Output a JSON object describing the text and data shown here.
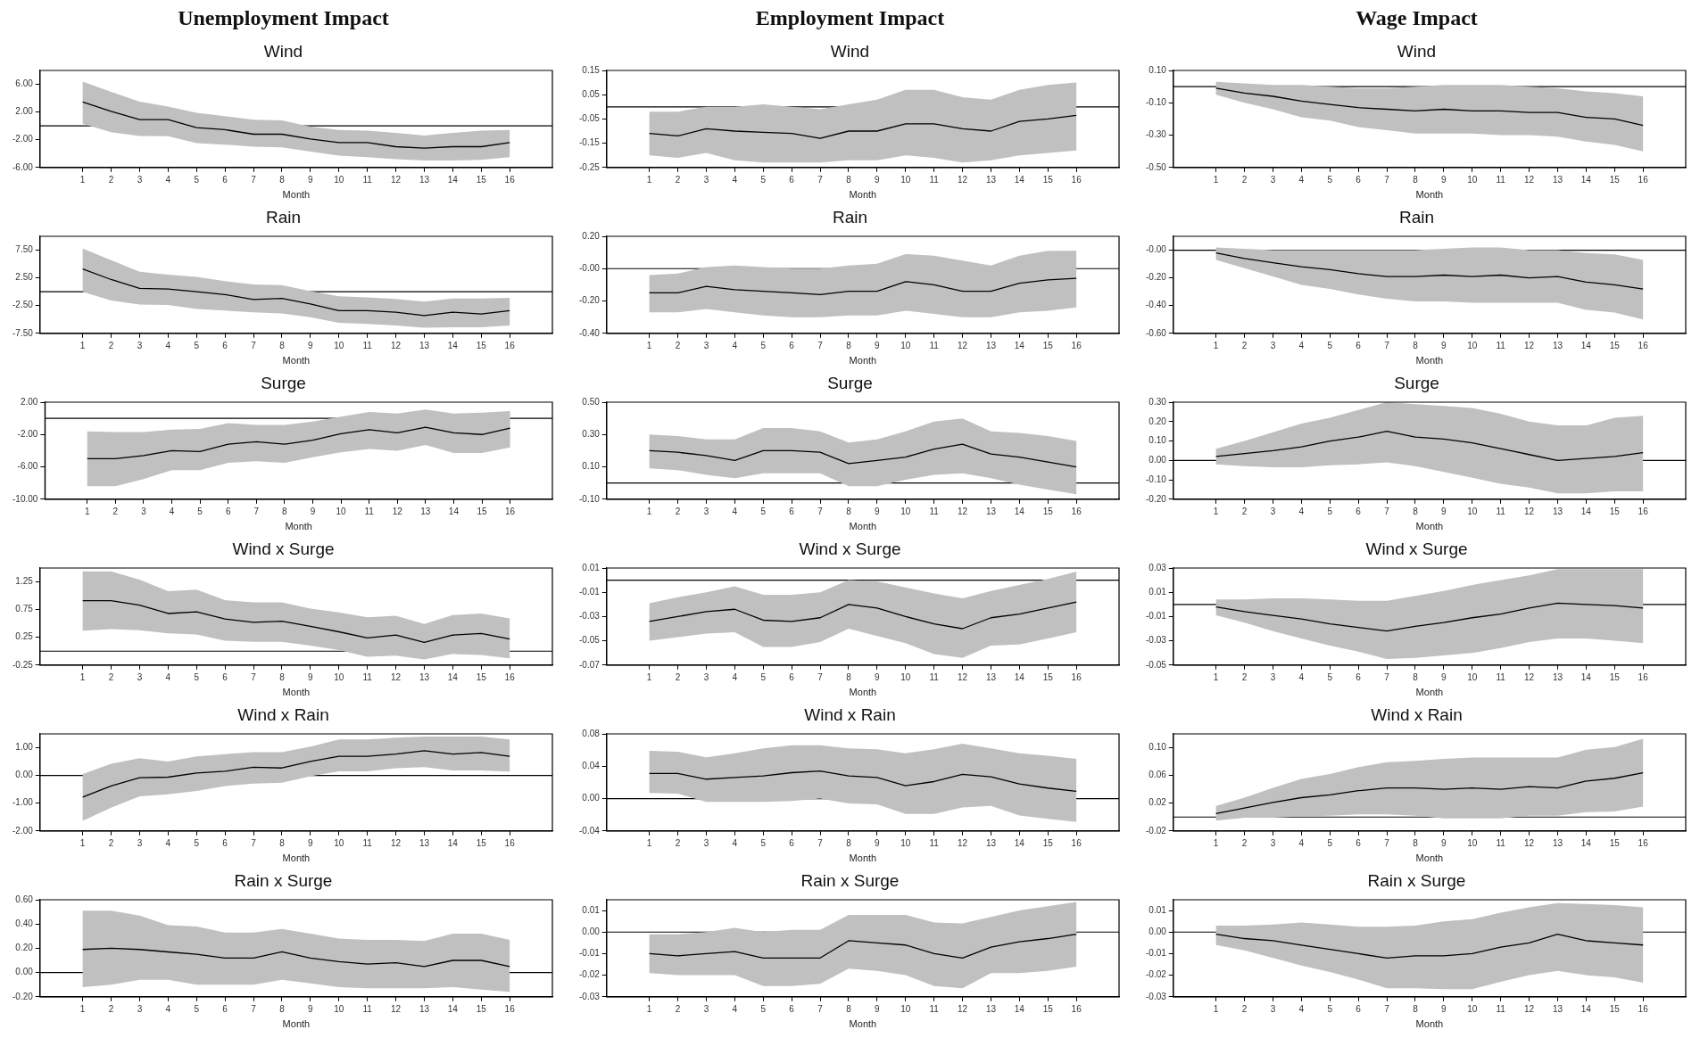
{
  "chart_data": [
    {
      "type": "line",
      "title": "Unemployment Impact",
      "subtitle": "Wind",
      "xlabel": "Month",
      "x": [
        1,
        2,
        3,
        4,
        5,
        6,
        7,
        8,
        9,
        10,
        11,
        12,
        13,
        14,
        15,
        16
      ],
      "xlim": [
        -0.5,
        17.5
      ],
      "xticks": [
        1,
        2,
        3,
        4,
        5,
        6,
        7,
        8,
        9,
        10,
        11,
        12,
        13,
        14,
        15,
        16
      ],
      "ylim": [
        -6,
        8
      ],
      "yticks": [
        {
          "value": -6,
          "label": "-6.00"
        },
        {
          "value": -2,
          "label": "-2.00"
        },
        {
          "value": 2,
          "label": "2.00"
        },
        {
          "value": 6,
          "label": "6.00"
        }
      ],
      "ref_lines": [
        {
          "axis": "y",
          "value": 0,
          "color": "#000000"
        }
      ],
      "series": [
        {
          "color": "#000000",
          "values": [
            3.45,
            2.1,
            0.9,
            0.9,
            -0.25,
            -0.55,
            -1.2,
            -1.2,
            -1.9,
            -2.4,
            -2.4,
            -3.0,
            -3.2,
            -3.0,
            -3.0,
            -2.4
          ],
          "upper": [
            6.4,
            4.9,
            3.5,
            2.8,
            1.9,
            1.4,
            0.9,
            0.8,
            -0.1,
            -0.6,
            -0.7,
            -1.0,
            -1.4,
            -1.0,
            -0.7,
            -0.6
          ],
          "lower": [
            0.3,
            -0.9,
            -1.45,
            -1.5,
            -2.5,
            -2.7,
            -3.0,
            -3.1,
            -3.7,
            -4.3,
            -4.5,
            -4.8,
            -5.0,
            -5.0,
            -4.9,
            -4.5
          ]
        }
      ]
    },
    {
      "type": "line",
      "title": "Employment Impact",
      "subtitle": "Wind",
      "xlabel": "Month",
      "x": [
        1,
        2,
        3,
        4,
        5,
        6,
        7,
        8,
        9,
        10,
        11,
        12,
        13,
        14,
        15,
        16
      ],
      "xlim": [
        -0.5,
        17.5
      ],
      "xticks": [
        1,
        2,
        3,
        4,
        5,
        6,
        7,
        8,
        9,
        10,
        11,
        12,
        13,
        14,
        15,
        16
      ],
      "ylim": [
        -0.25,
        0.15
      ],
      "yticks": [
        {
          "value": -0.25,
          "label": "-0.25"
        },
        {
          "value": -0.15,
          "label": "-0.15"
        },
        {
          "value": -0.05,
          "label": "-0.05"
        },
        {
          "value": 0.05,
          "label": "0.05"
        },
        {
          "value": 0.15,
          "label": "0.15"
        }
      ],
      "ref_lines": [
        {
          "axis": "y",
          "value": 0,
          "color": "#000000"
        }
      ],
      "series": [
        {
          "color": "#000000",
          "values": [
            -0.11,
            -0.12,
            -0.09,
            -0.1,
            -0.105,
            -0.11,
            -0.13,
            -0.1,
            -0.1,
            -0.07,
            -0.07,
            -0.09,
            -0.1,
            -0.06,
            -0.05,
            -0.035
          ],
          "upper": [
            -0.02,
            -0.02,
            0.0,
            0.0,
            0.01,
            0.0,
            -0.01,
            0.01,
            0.03,
            0.07,
            0.07,
            0.04,
            0.03,
            0.07,
            0.09,
            0.1
          ],
          "lower": [
            -0.2,
            -0.21,
            -0.19,
            -0.22,
            -0.23,
            -0.23,
            -0.23,
            -0.22,
            -0.22,
            -0.2,
            -0.21,
            -0.23,
            -0.22,
            -0.2,
            -0.19,
            -0.18
          ]
        }
      ]
    },
    {
      "type": "line",
      "title": "Wage Impact",
      "subtitle": "Wind",
      "xlabel": "Month",
      "x": [
        1,
        2,
        3,
        4,
        5,
        6,
        7,
        8,
        9,
        10,
        11,
        12,
        13,
        14,
        15,
        16
      ],
      "xlim": [
        -0.5,
        17.5
      ],
      "xticks": [
        1,
        2,
        3,
        4,
        5,
        6,
        7,
        8,
        9,
        10,
        11,
        12,
        13,
        14,
        15,
        16
      ],
      "ylim": [
        -0.5,
        0.1
      ],
      "yticks": [
        {
          "value": -0.5,
          "label": "-0.50"
        },
        {
          "value": -0.3,
          "label": "-0.30"
        },
        {
          "value": -0.1,
          "label": "-0.10"
        },
        {
          "value": 0.1,
          "label": "0.10"
        }
      ],
      "ref_lines": [
        {
          "axis": "y",
          "value": 0,
          "color": "#000000"
        }
      ],
      "series": [
        {
          "color": "#000000",
          "values": [
            -0.01,
            -0.04,
            -0.06,
            -0.09,
            -0.11,
            -0.13,
            -0.14,
            -0.15,
            -0.14,
            -0.15,
            -0.15,
            -0.16,
            -0.16,
            -0.19,
            -0.2,
            -0.24
          ],
          "upper": [
            0.03,
            0.02,
            0.01,
            0.01,
            0.0,
            -0.01,
            -0.01,
            0.0,
            0.01,
            0.01,
            0.01,
            0.0,
            -0.01,
            -0.03,
            -0.04,
            -0.06
          ],
          "lower": [
            -0.05,
            -0.1,
            -0.14,
            -0.19,
            -0.21,
            -0.25,
            -0.27,
            -0.29,
            -0.29,
            -0.29,
            -0.3,
            -0.3,
            -0.31,
            -0.34,
            -0.36,
            -0.4
          ]
        }
      ]
    },
    {
      "type": "line",
      "title": "Rain",
      "xlabel": "Month",
      "x": [
        1,
        2,
        3,
        4,
        5,
        6,
        7,
        8,
        9,
        10,
        11,
        12,
        13,
        14,
        15,
        16
      ],
      "xlim": [
        -0.5,
        17.5
      ],
      "xticks": [
        1,
        2,
        3,
        4,
        5,
        6,
        7,
        8,
        9,
        10,
        11,
        12,
        13,
        14,
        15,
        16
      ],
      "ylim": [
        -7.5,
        10
      ],
      "yticks": [
        {
          "value": -7.5,
          "label": "-7.50"
        },
        {
          "value": -2.5,
          "label": "-2.50"
        },
        {
          "value": 2.5,
          "label": "2.50"
        },
        {
          "value": 7.5,
          "label": "7.50"
        }
      ],
      "ref_lines": [
        {
          "axis": "y",
          "value": 0,
          "color": "#000000"
        }
      ],
      "series": [
        {
          "color": "#000000",
          "values": [
            4.1,
            2.2,
            0.6,
            0.5,
            0.0,
            -0.5,
            -1.4,
            -1.2,
            -2.2,
            -3.4,
            -3.4,
            -3.7,
            -4.3,
            -3.7,
            -4.0,
            -3.4
          ],
          "upper": [
            7.8,
            5.7,
            3.6,
            3.1,
            2.7,
            1.9,
            1.3,
            1.2,
            0.1,
            -0.8,
            -1.0,
            -1.3,
            -1.8,
            -1.2,
            -1.2,
            -1.1
          ],
          "lower": [
            0.0,
            -1.6,
            -2.3,
            -2.4,
            -3.1,
            -3.4,
            -3.7,
            -3.9,
            -4.6,
            -5.6,
            -5.8,
            -6.1,
            -6.5,
            -6.4,
            -6.4,
            -6.1
          ]
        }
      ]
    },
    {
      "type": "line",
      "title": "Rain",
      "xlabel": "Month",
      "x": [
        1,
        2,
        3,
        4,
        5,
        6,
        7,
        8,
        9,
        10,
        11,
        12,
        13,
        14,
        15,
        16
      ],
      "xlim": [
        -0.5,
        17.5
      ],
      "xticks": [
        1,
        2,
        3,
        4,
        5,
        6,
        7,
        8,
        9,
        10,
        11,
        12,
        13,
        14,
        15,
        16
      ],
      "ylim": [
        -0.4,
        0.2
      ],
      "yticks": [
        {
          "value": -0.4,
          "label": "-0.40"
        },
        {
          "value": -0.2,
          "label": "-0.20"
        },
        {
          "value": 0,
          "label": "-0.00"
        },
        {
          "value": 0.2,
          "label": "0.20"
        }
      ],
      "ref_lines": [
        {
          "axis": "y",
          "value": 0,
          "color": "#000000"
        }
      ],
      "series": [
        {
          "color": "#000000",
          "values": [
            -0.15,
            -0.15,
            -0.11,
            -0.13,
            -0.14,
            -0.15,
            -0.16,
            -0.14,
            -0.14,
            -0.08,
            -0.1,
            -0.14,
            -0.14,
            -0.09,
            -0.07,
            -0.06
          ],
          "upper": [
            -0.04,
            -0.03,
            0.01,
            0.02,
            0.01,
            0.0,
            0.0,
            0.02,
            0.03,
            0.09,
            0.08,
            0.05,
            0.02,
            0.08,
            0.11,
            0.11
          ],
          "lower": [
            -0.27,
            -0.27,
            -0.25,
            -0.27,
            -0.29,
            -0.3,
            -0.3,
            -0.29,
            -0.29,
            -0.26,
            -0.28,
            -0.3,
            -0.3,
            -0.27,
            -0.26,
            -0.24
          ]
        }
      ]
    },
    {
      "type": "line",
      "title": "Rain",
      "xlabel": "Month",
      "x": [
        1,
        2,
        3,
        4,
        5,
        6,
        7,
        8,
        9,
        10,
        11,
        12,
        13,
        14,
        15,
        16
      ],
      "xlim": [
        -0.5,
        17.5
      ],
      "xticks": [
        1,
        2,
        3,
        4,
        5,
        6,
        7,
        8,
        9,
        10,
        11,
        12,
        13,
        14,
        15,
        16
      ],
      "ylim": [
        -0.6,
        0.1
      ],
      "yticks": [
        {
          "value": -0.6,
          "label": "-0.60"
        },
        {
          "value": -0.4,
          "label": "-0.40"
        },
        {
          "value": -0.2,
          "label": "-0.20"
        },
        {
          "value": 0,
          "label": "-0.00"
        }
      ],
      "ref_lines": [
        {
          "axis": "y",
          "value": 0,
          "color": "#000000"
        }
      ],
      "series": [
        {
          "color": "#000000",
          "values": [
            -0.02,
            -0.06,
            -0.09,
            -0.12,
            -0.14,
            -0.17,
            -0.19,
            -0.19,
            -0.18,
            -0.19,
            -0.18,
            -0.2,
            -0.19,
            -0.23,
            -0.25,
            -0.28
          ],
          "upper": [
            0.02,
            0.01,
            0.0,
            0.0,
            0.0,
            0.0,
            0.0,
            0.0,
            0.01,
            0.02,
            0.02,
            0.0,
            0.0,
            -0.02,
            -0.03,
            -0.07
          ],
          "lower": [
            -0.07,
            -0.13,
            -0.19,
            -0.25,
            -0.28,
            -0.32,
            -0.35,
            -0.37,
            -0.37,
            -0.38,
            -0.38,
            -0.38,
            -0.38,
            -0.43,
            -0.45,
            -0.5
          ]
        }
      ]
    },
    {
      "type": "line",
      "title": "Surge",
      "xlabel": "Month",
      "x": [
        1,
        2,
        3,
        4,
        5,
        6,
        7,
        8,
        9,
        10,
        11,
        12,
        13,
        14,
        15,
        16
      ],
      "xlim": [
        -0.5,
        17.5
      ],
      "xticks": [
        1,
        2,
        3,
        4,
        5,
        6,
        7,
        8,
        9,
        10,
        11,
        12,
        13,
        14,
        15,
        16
      ],
      "ylim": [
        -10,
        2
      ],
      "yticks": [
        {
          "value": -10,
          "label": "-10.00"
        },
        {
          "value": -6,
          "label": "-6.00"
        },
        {
          "value": -2,
          "label": "-2.00"
        },
        {
          "value": 2,
          "label": "2.00"
        }
      ],
      "ref_lines": [
        {
          "axis": "y",
          "value": 0,
          "color": "#000000"
        }
      ],
      "series": [
        {
          "color": "#000000",
          "values": [
            -5.0,
            -5.0,
            -4.6,
            -4.0,
            -4.1,
            -3.2,
            -2.9,
            -3.2,
            -2.7,
            -1.9,
            -1.4,
            -1.8,
            -1.1,
            -1.8,
            -2.0,
            -1.2
          ],
          "upper": [
            -1.6,
            -1.7,
            -1.7,
            -1.4,
            -1.3,
            -0.6,
            -0.8,
            -0.8,
            -0.4,
            0.2,
            0.8,
            0.6,
            1.1,
            0.6,
            0.7,
            0.9
          ],
          "lower": [
            -8.4,
            -8.4,
            -7.5,
            -6.4,
            -6.4,
            -5.5,
            -5.3,
            -5.5,
            -4.8,
            -4.2,
            -3.8,
            -4.0,
            -3.3,
            -4.3,
            -4.3,
            -3.6
          ]
        }
      ]
    },
    {
      "type": "line",
      "title": "Surge",
      "xlabel": "Month",
      "x": [
        1,
        2,
        3,
        4,
        5,
        6,
        7,
        8,
        9,
        10,
        11,
        12,
        13,
        14,
        15,
        16
      ],
      "xlim": [
        -0.5,
        17.5
      ],
      "xticks": [
        1,
        2,
        3,
        4,
        5,
        6,
        7,
        8,
        9,
        10,
        11,
        12,
        13,
        14,
        15,
        16
      ],
      "ylim": [
        -0.1,
        0.5
      ],
      "yticks": [
        {
          "value": -0.1,
          "label": "-0.10"
        },
        {
          "value": 0.1,
          "label": "0.10"
        },
        {
          "value": 0.3,
          "label": "0.30"
        },
        {
          "value": 0.5,
          "label": "0.50"
        }
      ],
      "ref_lines": [
        {
          "axis": "y",
          "value": 0,
          "color": "#000000"
        }
      ],
      "series": [
        {
          "color": "#000000",
          "values": [
            0.2,
            0.19,
            0.17,
            0.14,
            0.2,
            0.2,
            0.19,
            0.12,
            0.14,
            0.16,
            0.21,
            0.24,
            0.18,
            0.16,
            0.13,
            0.1
          ],
          "upper": [
            0.3,
            0.29,
            0.27,
            0.27,
            0.34,
            0.34,
            0.32,
            0.25,
            0.27,
            0.32,
            0.38,
            0.4,
            0.32,
            0.31,
            0.29,
            0.26
          ],
          "lower": [
            0.09,
            0.08,
            0.05,
            0.03,
            0.06,
            0.06,
            0.06,
            -0.02,
            -0.02,
            0.02,
            0.05,
            0.06,
            0.03,
            -0.01,
            -0.04,
            -0.07
          ]
        }
      ]
    },
    {
      "type": "line",
      "title": "Surge",
      "xlabel": "Month",
      "x": [
        1,
        2,
        3,
        4,
        5,
        6,
        7,
        8,
        9,
        10,
        11,
        12,
        13,
        14,
        15,
        16
      ],
      "xlim": [
        -0.5,
        17.5
      ],
      "xticks": [
        1,
        2,
        3,
        4,
        5,
        6,
        7,
        8,
        9,
        10,
        11,
        12,
        13,
        14,
        15,
        16
      ],
      "ylim": [
        -0.2,
        0.3
      ],
      "yticks": [
        {
          "value": -0.2,
          "label": "-0.20"
        },
        {
          "value": -0.1,
          "label": "-0.10"
        },
        {
          "value": 0,
          "label": "0.00"
        },
        {
          "value": 0.1,
          "label": "0.10"
        },
        {
          "value": 0.2,
          "label": "0.20"
        },
        {
          "value": 0.3,
          "label": "0.30"
        }
      ],
      "ref_lines": [
        {
          "axis": "y",
          "value": 0,
          "color": "#000000"
        }
      ],
      "series": [
        {
          "color": "#000000",
          "values": [
            0.02,
            0.035,
            0.05,
            0.07,
            0.1,
            0.12,
            0.15,
            0.12,
            0.11,
            0.09,
            0.06,
            0.03,
            0.0,
            0.01,
            0.02,
            0.04
          ],
          "upper": [
            0.06,
            0.1,
            0.145,
            0.19,
            0.22,
            0.26,
            0.3,
            0.29,
            0.28,
            0.27,
            0.24,
            0.2,
            0.18,
            0.18,
            0.22,
            0.23
          ],
          "lower": [
            -0.02,
            -0.03,
            -0.035,
            -0.035,
            -0.025,
            -0.02,
            -0.01,
            -0.03,
            -0.06,
            -0.09,
            -0.12,
            -0.14,
            -0.17,
            -0.17,
            -0.16,
            -0.16
          ]
        }
      ]
    },
    {
      "type": "line",
      "title": "Wind x Surge",
      "xlabel": "Month",
      "x": [
        1,
        2,
        3,
        4,
        5,
        6,
        7,
        8,
        9,
        10,
        11,
        12,
        13,
        14,
        15,
        16
      ],
      "xlim": [
        -0.5,
        17.5
      ],
      "xticks": [
        1,
        2,
        3,
        4,
        5,
        6,
        7,
        8,
        9,
        10,
        11,
        12,
        13,
        14,
        15,
        16
      ],
      "ylim": [
        -0.25,
        1.5
      ],
      "yticks": [
        {
          "value": -0.25,
          "label": "-0.25"
        },
        {
          "value": 0.25,
          "label": "0.25"
        },
        {
          "value": 0.75,
          "label": "0.75"
        },
        {
          "value": 1.25,
          "label": "1.25"
        }
      ],
      "ref_lines": [
        {
          "axis": "y",
          "value": 0,
          "color": "#000000"
        }
      ],
      "series": [
        {
          "color": "#000000",
          "values": [
            0.91,
            0.91,
            0.83,
            0.68,
            0.71,
            0.58,
            0.52,
            0.54,
            0.45,
            0.35,
            0.24,
            0.29,
            0.16,
            0.29,
            0.32,
            0.22
          ],
          "upper": [
            1.44,
            1.44,
            1.29,
            1.08,
            1.11,
            0.92,
            0.88,
            0.88,
            0.77,
            0.7,
            0.61,
            0.64,
            0.49,
            0.65,
            0.68,
            0.59
          ],
          "lower": [
            0.37,
            0.4,
            0.38,
            0.32,
            0.3,
            0.19,
            0.17,
            0.17,
            0.1,
            0.02,
            -0.1,
            -0.08,
            -0.15,
            -0.05,
            -0.07,
            -0.13
          ]
        }
      ]
    },
    {
      "type": "line",
      "title": "Wind x Surge",
      "xlabel": "Month",
      "x": [
        1,
        2,
        3,
        4,
        5,
        6,
        7,
        8,
        9,
        10,
        11,
        12,
        13,
        14,
        15,
        16
      ],
      "xlim": [
        -0.5,
        17.5
      ],
      "xticks": [
        1,
        2,
        3,
        4,
        5,
        6,
        7,
        8,
        9,
        10,
        11,
        12,
        13,
        14,
        15,
        16
      ],
      "ylim": [
        -0.07,
        0.01
      ],
      "yticks": [
        {
          "value": -0.07,
          "label": "-0.07"
        },
        {
          "value": -0.05,
          "label": "-0.05"
        },
        {
          "value": -0.03,
          "label": "-0.03"
        },
        {
          "value": -0.01,
          "label": "-0.01"
        },
        {
          "value": 0.01,
          "label": "0.01"
        }
      ],
      "ref_lines": [
        {
          "axis": "y",
          "value": 0,
          "color": "#000000"
        }
      ],
      "series": [
        {
          "color": "#000000",
          "values": [
            -0.034,
            -0.03,
            -0.026,
            -0.024,
            -0.033,
            -0.034,
            -0.031,
            -0.02,
            -0.023,
            -0.03,
            -0.036,
            -0.04,
            -0.031,
            -0.028,
            -0.023,
            -0.018
          ],
          "upper": [
            -0.019,
            -0.014,
            -0.01,
            -0.005,
            -0.012,
            -0.012,
            -0.01,
            0.0,
            -0.001,
            -0.006,
            -0.011,
            -0.015,
            -0.009,
            -0.004,
            0.001,
            0.007
          ],
          "lower": [
            -0.05,
            -0.047,
            -0.044,
            -0.043,
            -0.055,
            -0.055,
            -0.051,
            -0.04,
            -0.046,
            -0.052,
            -0.061,
            -0.064,
            -0.054,
            -0.053,
            -0.048,
            -0.043
          ]
        }
      ]
    },
    {
      "type": "line",
      "title": "Wind x Surge",
      "xlabel": "Month",
      "x": [
        1,
        2,
        3,
        4,
        5,
        6,
        7,
        8,
        9,
        10,
        11,
        12,
        13,
        14,
        15,
        16
      ],
      "xlim": [
        -0.5,
        17.5
      ],
      "xticks": [
        1,
        2,
        3,
        4,
        5,
        6,
        7,
        8,
        9,
        10,
        11,
        12,
        13,
        14,
        15,
        16
      ],
      "ylim": [
        -0.05,
        0.03
      ],
      "yticks": [
        {
          "value": -0.05,
          "label": "-0.05"
        },
        {
          "value": -0.03,
          "label": "-0.03"
        },
        {
          "value": -0.01,
          "label": "-0.01"
        },
        {
          "value": 0.01,
          "label": "0.01"
        },
        {
          "value": 0.03,
          "label": "0.03"
        }
      ],
      "ref_lines": [
        {
          "axis": "y",
          "value": 0,
          "color": "#000000"
        }
      ],
      "series": [
        {
          "color": "#000000",
          "values": [
            -0.002,
            -0.006,
            -0.009,
            -0.012,
            -0.016,
            -0.019,
            -0.022,
            -0.018,
            -0.015,
            -0.011,
            -0.008,
            -0.003,
            0.001,
            0.0,
            -0.001,
            -0.003
          ],
          "upper": [
            0.004,
            0.004,
            0.005,
            0.005,
            0.004,
            0.003,
            0.003,
            0.007,
            0.011,
            0.016,
            0.02,
            0.024,
            0.029,
            0.029,
            0.029,
            0.029
          ],
          "lower": [
            -0.009,
            -0.015,
            -0.022,
            -0.028,
            -0.034,
            -0.039,
            -0.045,
            -0.044,
            -0.042,
            -0.04,
            -0.036,
            -0.031,
            -0.028,
            -0.028,
            -0.03,
            -0.032
          ]
        }
      ]
    },
    {
      "type": "line",
      "title": "Wind x Rain",
      "xlabel": "Month",
      "x": [
        1,
        2,
        3,
        4,
        5,
        6,
        7,
        8,
        9,
        10,
        11,
        12,
        13,
        14,
        15,
        16
      ],
      "xlim": [
        -0.5,
        17.5
      ],
      "xticks": [
        1,
        2,
        3,
        4,
        5,
        6,
        7,
        8,
        9,
        10,
        11,
        12,
        13,
        14,
        15,
        16
      ],
      "ylim": [
        -2,
        1.5
      ],
      "yticks": [
        {
          "value": -2,
          "label": "-2.00"
        },
        {
          "value": -1,
          "label": "-1.00"
        },
        {
          "value": 0,
          "label": "0.00"
        },
        {
          "value": 1,
          "label": "1.00"
        }
      ],
      "ref_lines": [
        {
          "axis": "y",
          "value": 0,
          "color": "#000000"
        }
      ],
      "series": [
        {
          "color": "#000000",
          "values": [
            -0.78,
            -0.38,
            -0.08,
            -0.06,
            0.09,
            0.15,
            0.3,
            0.27,
            0.51,
            0.69,
            0.69,
            0.77,
            0.89,
            0.77,
            0.83,
            0.69
          ],
          "upper": [
            0.05,
            0.42,
            0.62,
            0.5,
            0.69,
            0.77,
            0.84,
            0.84,
            1.04,
            1.3,
            1.3,
            1.36,
            1.4,
            1.4,
            1.4,
            1.3
          ],
          "lower": [
            -1.64,
            -1.16,
            -0.75,
            -0.68,
            -0.56,
            -0.38,
            -0.29,
            -0.26,
            -0.03,
            0.15,
            0.15,
            0.26,
            0.3,
            0.18,
            0.18,
            0.14
          ]
        }
      ]
    },
    {
      "type": "line",
      "title": "Wind x Rain",
      "xlabel": "Month",
      "x": [
        1,
        2,
        3,
        4,
        5,
        6,
        7,
        8,
        9,
        10,
        11,
        12,
        13,
        14,
        15,
        16
      ],
      "xlim": [
        -0.5,
        17.5
      ],
      "xticks": [
        1,
        2,
        3,
        4,
        5,
        6,
        7,
        8,
        9,
        10,
        11,
        12,
        13,
        14,
        15,
        16
      ],
      "ylim": [
        -0.04,
        0.08
      ],
      "yticks": [
        {
          "value": -0.04,
          "label": "-0.04"
        },
        {
          "value": 0,
          "label": "0.00"
        },
        {
          "value": 0.04,
          "label": "0.04"
        },
        {
          "value": 0.08,
          "label": "0.08"
        }
      ],
      "ref_lines": [
        {
          "axis": "y",
          "value": 0,
          "color": "#000000"
        }
      ],
      "series": [
        {
          "color": "#000000",
          "values": [
            0.031,
            0.031,
            0.024,
            0.026,
            0.028,
            0.032,
            0.034,
            0.028,
            0.026,
            0.016,
            0.021,
            0.03,
            0.027,
            0.018,
            0.013,
            0.009
          ],
          "upper": [
            0.059,
            0.058,
            0.051,
            0.056,
            0.062,
            0.066,
            0.066,
            0.062,
            0.061,
            0.056,
            0.061,
            0.068,
            0.062,
            0.056,
            0.053,
            0.049
          ],
          "lower": [
            0.007,
            0.006,
            -0.004,
            -0.004,
            -0.004,
            -0.003,
            0.0,
            -0.006,
            -0.007,
            -0.019,
            -0.019,
            -0.011,
            -0.009,
            -0.021,
            -0.025,
            -0.029
          ]
        }
      ]
    },
    {
      "type": "line",
      "title": "Wind x Rain",
      "xlabel": "Month",
      "x": [
        1,
        2,
        3,
        4,
        5,
        6,
        7,
        8,
        9,
        10,
        11,
        12,
        13,
        14,
        15,
        16
      ],
      "xlim": [
        -0.5,
        17.5
      ],
      "xticks": [
        1,
        2,
        3,
        4,
        5,
        6,
        7,
        8,
        9,
        10,
        11,
        12,
        13,
        14,
        15,
        16
      ],
      "ylim": [
        -0.02,
        0.12
      ],
      "yticks": [
        {
          "value": -0.02,
          "label": "-0.02"
        },
        {
          "value": 0.02,
          "label": "0.02"
        },
        {
          "value": 0.06,
          "label": "0.06"
        },
        {
          "value": 0.1,
          "label": "0.10"
        }
      ],
      "ref_lines": [
        {
          "axis": "y",
          "value": 0,
          "color": "#000000"
        }
      ],
      "series": [
        {
          "color": "#000000",
          "values": [
            0.005,
            0.013,
            0.021,
            0.028,
            0.032,
            0.038,
            0.042,
            0.042,
            0.04,
            0.042,
            0.04,
            0.044,
            0.042,
            0.052,
            0.056,
            0.064
          ],
          "upper": [
            0.016,
            0.028,
            0.042,
            0.055,
            0.062,
            0.072,
            0.079,
            0.081,
            0.084,
            0.086,
            0.086,
            0.086,
            0.086,
            0.097,
            0.101,
            0.113
          ],
          "lower": [
            -0.005,
            -0.001,
            -0.001,
            0.001,
            0.002,
            0.004,
            0.004,
            0.002,
            -0.002,
            -0.002,
            -0.002,
            0.002,
            0.002,
            0.007,
            0.008,
            0.015
          ]
        }
      ]
    },
    {
      "type": "line",
      "title": "Rain x Surge",
      "xlabel": "Month",
      "x": [
        1,
        2,
        3,
        4,
        5,
        6,
        7,
        8,
        9,
        10,
        11,
        12,
        13,
        14,
        15,
        16
      ],
      "xlim": [
        -0.5,
        17.5
      ],
      "xticks": [
        1,
        2,
        3,
        4,
        5,
        6,
        7,
        8,
        9,
        10,
        11,
        12,
        13,
        14,
        15,
        16
      ],
      "ylim": [
        -0.2,
        0.6
      ],
      "yticks": [
        {
          "value": -0.2,
          "label": "-0.20"
        },
        {
          "value": 0,
          "label": "0.00"
        },
        {
          "value": 0.2,
          "label": "0.20"
        },
        {
          "value": 0.4,
          "label": "0.40"
        },
        {
          "value": 0.6,
          "label": "0.60"
        }
      ],
      "ref_lines": [
        {
          "axis": "y",
          "value": 0,
          "color": "#000000"
        }
      ],
      "series": [
        {
          "color": "#000000",
          "values": [
            0.19,
            0.2,
            0.19,
            0.17,
            0.15,
            0.12,
            0.12,
            0.17,
            0.12,
            0.09,
            0.07,
            0.08,
            0.05,
            0.1,
            0.1,
            0.05
          ],
          "upper": [
            0.51,
            0.51,
            0.47,
            0.39,
            0.38,
            0.33,
            0.33,
            0.36,
            0.32,
            0.28,
            0.27,
            0.27,
            0.26,
            0.32,
            0.32,
            0.27
          ],
          "lower": [
            -0.12,
            -0.1,
            -0.06,
            -0.06,
            -0.1,
            -0.1,
            -0.1,
            -0.06,
            -0.09,
            -0.12,
            -0.13,
            -0.13,
            -0.13,
            -0.12,
            -0.14,
            -0.16
          ]
        }
      ]
    },
    {
      "type": "line",
      "title": "Rain x Surge",
      "xlabel": "Month",
      "x": [
        1,
        2,
        3,
        4,
        5,
        6,
        7,
        8,
        9,
        10,
        11,
        12,
        13,
        14,
        15,
        16
      ],
      "xlim": [
        -0.5,
        17.5
      ],
      "xticks": [
        1,
        2,
        3,
        4,
        5,
        6,
        7,
        8,
        9,
        10,
        11,
        12,
        13,
        14,
        15,
        16
      ],
      "ylim": [
        -0.03,
        0.015
      ],
      "yticks": [
        {
          "value": -0.03,
          "label": "-0.03"
        },
        {
          "value": -0.02,
          "label": "-0.02"
        },
        {
          "value": -0.01,
          "label": "-0.01"
        },
        {
          "value": 0,
          "label": "0.00"
        },
        {
          "value": 0.01,
          "label": "0.01"
        }
      ],
      "ref_lines": [
        {
          "axis": "y",
          "value": 0,
          "color": "#000000"
        }
      ],
      "series": [
        {
          "color": "#000000",
          "values": [
            -0.01,
            -0.011,
            -0.01,
            -0.009,
            -0.012,
            -0.012,
            -0.012,
            -0.004,
            -0.005,
            -0.006,
            -0.01,
            -0.012,
            -0.007,
            -0.0045,
            -0.003,
            -0.001
          ],
          "upper": [
            -0.001,
            -0.001,
            0.0,
            0.002,
            0.0,
            0.001,
            0.001,
            0.008,
            0.008,
            0.008,
            0.0045,
            0.004,
            0.007,
            0.01,
            0.012,
            0.014
          ],
          "lower": [
            -0.019,
            -0.02,
            -0.02,
            -0.02,
            -0.025,
            -0.025,
            -0.024,
            -0.017,
            -0.018,
            -0.02,
            -0.025,
            -0.026,
            -0.019,
            -0.019,
            -0.018,
            -0.016
          ]
        }
      ]
    },
    {
      "type": "line",
      "title": "Rain x Surge",
      "xlabel": "Month",
      "x": [
        1,
        2,
        3,
        4,
        5,
        6,
        7,
        8,
        9,
        10,
        11,
        12,
        13,
        14,
        15,
        16
      ],
      "xlim": [
        -0.5,
        17.5
      ],
      "xticks": [
        1,
        2,
        3,
        4,
        5,
        6,
        7,
        8,
        9,
        10,
        11,
        12,
        13,
        14,
        15,
        16
      ],
      "ylim": [
        -0.03,
        0.015
      ],
      "yticks": [
        {
          "value": -0.03,
          "label": "-0.03"
        },
        {
          "value": -0.02,
          "label": "-0.02"
        },
        {
          "value": -0.01,
          "label": "-0.01"
        },
        {
          "value": 0,
          "label": "0.00"
        },
        {
          "value": 0.01,
          "label": "0.01"
        }
      ],
      "ref_lines": [
        {
          "axis": "y",
          "value": 0,
          "color": "#000000"
        }
      ],
      "series": [
        {
          "color": "#000000",
          "values": [
            -0.001,
            -0.003,
            -0.004,
            -0.006,
            -0.008,
            -0.01,
            -0.012,
            -0.011,
            -0.011,
            -0.01,
            -0.007,
            -0.005,
            -0.001,
            -0.004,
            -0.005,
            -0.006
          ],
          "upper": [
            0.003,
            0.003,
            0.0035,
            0.0045,
            0.0035,
            0.0025,
            0.0025,
            0.003,
            0.005,
            0.006,
            0.009,
            0.0115,
            0.0135,
            0.013,
            0.0125,
            0.0115
          ],
          "lower": [
            -0.006,
            -0.0085,
            -0.012,
            -0.0155,
            -0.0185,
            -0.022,
            -0.026,
            -0.026,
            -0.0265,
            -0.0265,
            -0.023,
            -0.02,
            -0.018,
            -0.02,
            -0.021,
            -0.0235
          ]
        }
      ]
    }
  ]
}
